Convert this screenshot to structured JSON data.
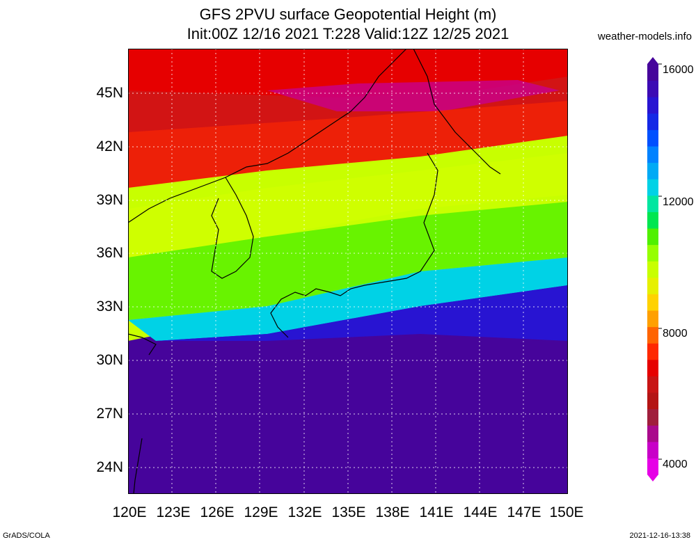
{
  "title_line1": "GFS 2PVU surface Geopotential Height (m)",
  "title_line2": "Init:00Z 12/16 2021 T:228 Valid:12Z 12/25 2021",
  "site": "weather-models.info",
  "footer_left": "GrADS/COLA",
  "footer_right": "2021-12-16-13:38",
  "map": {
    "lon_range": [
      120,
      150
    ],
    "lat_range": [
      22.5,
      47.5
    ],
    "lat_ticks": [
      "45N",
      "42N",
      "39N",
      "36N",
      "33N",
      "30N",
      "27N",
      "24N"
    ],
    "lon_ticks": [
      "120E",
      "123E",
      "126E",
      "129E",
      "132E",
      "135E",
      "138E",
      "141E",
      "144E",
      "147E",
      "150E"
    ],
    "grid": true
  },
  "colorbar": {
    "labels": [
      "16000",
      "12000",
      "8000",
      "4000"
    ],
    "colors": [
      "#e600e6",
      "#c800c8",
      "#aa0a8c",
      "#a01e3c",
      "#b41414",
      "#c81414",
      "#e60000",
      "#ff2800",
      "#ff6400",
      "#ffa000",
      "#ffd200",
      "#e6f000",
      "#c8ff00",
      "#96ff00",
      "#50f000",
      "#00e650",
      "#00e6a0",
      "#00d2e6",
      "#00aaf5",
      "#0082ff",
      "#0050ff",
      "#1428e6",
      "#2814d2",
      "#3c0ab4",
      "#46049b"
    ]
  }
}
